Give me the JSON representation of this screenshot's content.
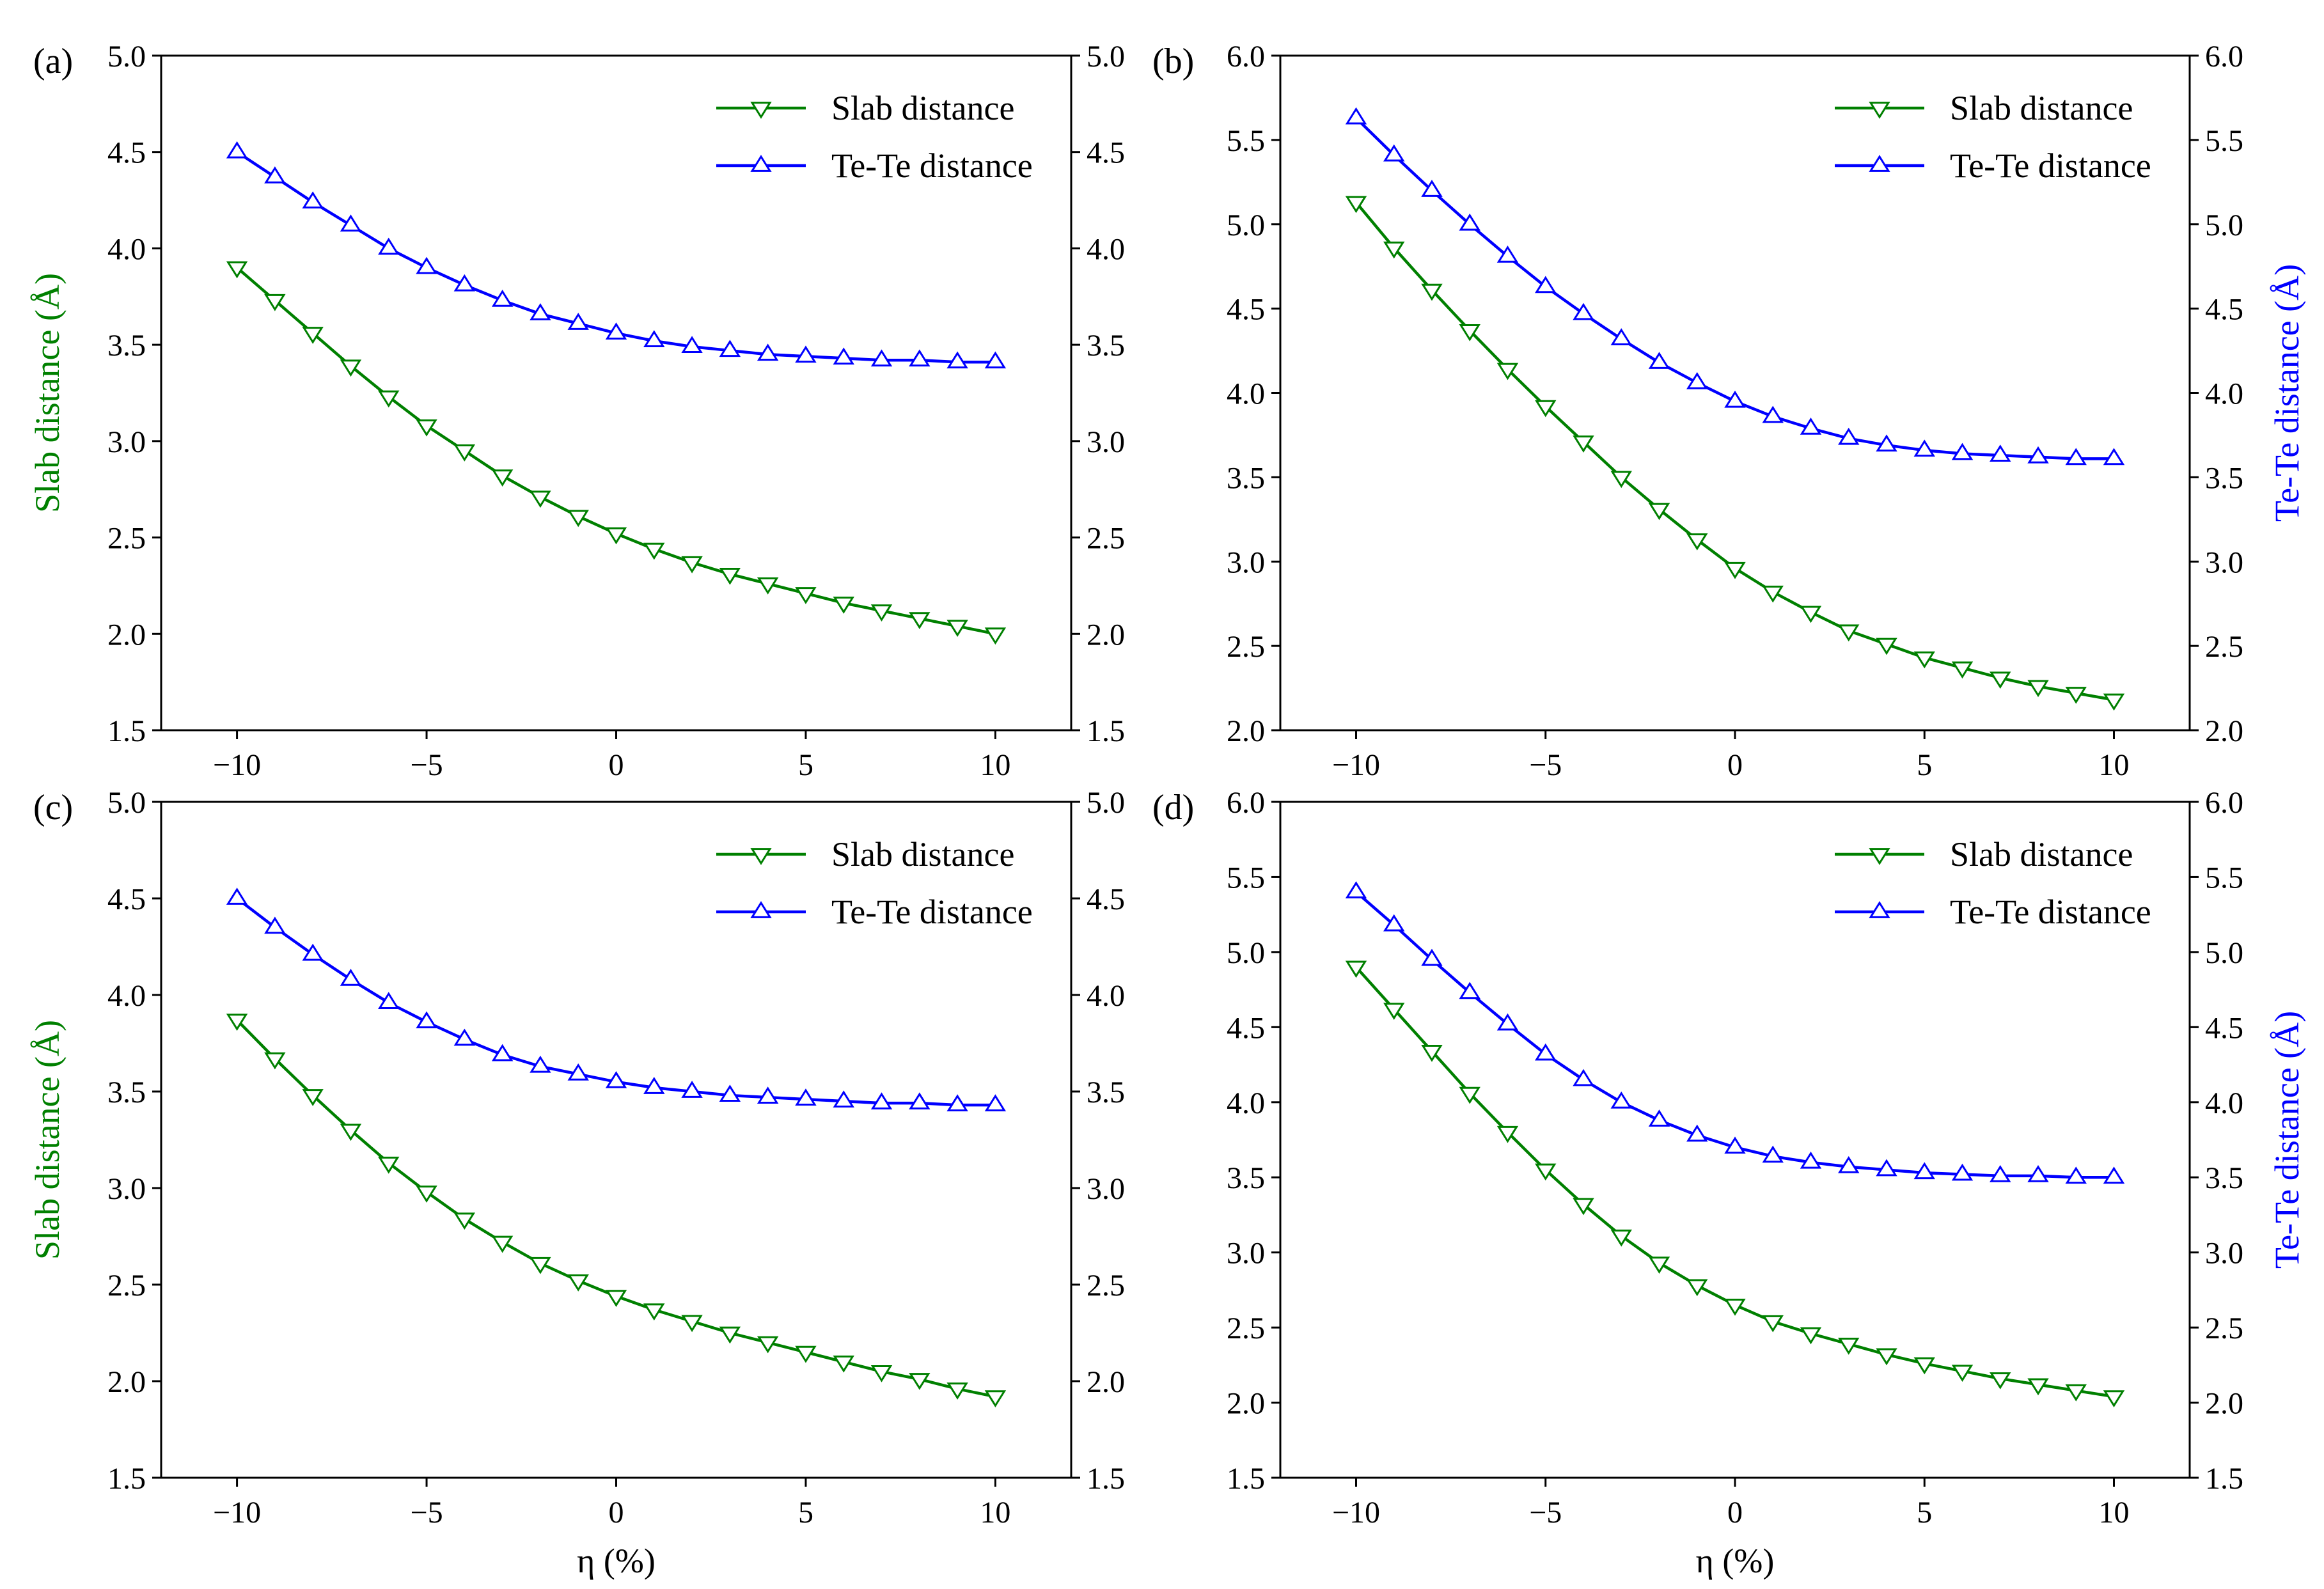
{
  "colors": {
    "slab": "#008000",
    "tete": "#0000ff",
    "axis": "#000000",
    "background": "#ffffff"
  },
  "chart_data": [
    {
      "type": "line",
      "panel_label": "(a)",
      "xlabel": "",
      "ylabel_left": "Slab distance (Å)",
      "ylabel_right": "",
      "xlim": [
        -12,
        12
      ],
      "xticks": [
        -10,
        -5,
        0,
        5,
        10
      ],
      "xtick_labels": [
        "−10",
        "−5",
        "0",
        "5",
        "10"
      ],
      "ylim": [
        1.5,
        5.0
      ],
      "yticks": [
        1.5,
        2.0,
        2.5,
        3.0,
        3.5,
        4.0,
        4.5,
        5.0
      ],
      "ytick_labels": [
        "1.5",
        "2.0",
        "2.5",
        "3.0",
        "3.5",
        "4.0",
        "4.5",
        "5.0"
      ],
      "legend_position": "upper-right",
      "x": [
        -10,
        -9,
        -8,
        -7,
        -6,
        -5,
        -4,
        -3,
        -2,
        -1,
        0,
        1,
        2,
        3,
        4,
        5,
        6,
        7,
        8,
        9,
        10
      ],
      "series": [
        {
          "name": "Slab distance",
          "marker": "triangle-down",
          "values": [
            3.9,
            3.73,
            3.56,
            3.39,
            3.23,
            3.08,
            2.95,
            2.82,
            2.71,
            2.61,
            2.52,
            2.44,
            2.37,
            2.31,
            2.26,
            2.21,
            2.16,
            2.12,
            2.08,
            2.04,
            2.0
          ]
        },
        {
          "name": "Te-Te distance",
          "marker": "triangle-up",
          "values": [
            4.5,
            4.37,
            4.24,
            4.12,
            4.0,
            3.9,
            3.81,
            3.73,
            3.66,
            3.61,
            3.56,
            3.52,
            3.49,
            3.47,
            3.45,
            3.44,
            3.43,
            3.42,
            3.42,
            3.41,
            3.41
          ]
        }
      ]
    },
    {
      "type": "line",
      "panel_label": "(b)",
      "xlabel": "",
      "ylabel_left": "",
      "ylabel_right": "Te-Te distance (Å)",
      "xlim": [
        -12,
        12
      ],
      "xticks": [
        -10,
        -5,
        0,
        5,
        10
      ],
      "xtick_labels": [
        "−10",
        "−5",
        "0",
        "5",
        "10"
      ],
      "ylim": [
        2.0,
        6.0
      ],
      "yticks": [
        2.0,
        2.5,
        3.0,
        3.5,
        4.0,
        4.5,
        5.0,
        5.5,
        6.0
      ],
      "ytick_labels": [
        "2.0",
        "2.5",
        "3.0",
        "3.5",
        "4.0",
        "4.5",
        "5.0",
        "5.5",
        "6.0"
      ],
      "legend_position": "upper-right",
      "x": [
        -10,
        -9,
        -8,
        -7,
        -6,
        -5,
        -4,
        -3,
        -2,
        -1,
        0,
        1,
        2,
        3,
        4,
        5,
        6,
        7,
        8,
        9,
        10
      ],
      "series": [
        {
          "name": "Slab distance",
          "marker": "triangle-down",
          "values": [
            5.13,
            4.86,
            4.61,
            4.37,
            4.14,
            3.92,
            3.71,
            3.5,
            3.31,
            3.13,
            2.96,
            2.82,
            2.7,
            2.59,
            2.51,
            2.43,
            2.37,
            2.31,
            2.26,
            2.22,
            2.18
          ]
        },
        {
          "name": "Te-Te distance",
          "marker": "triangle-up",
          "values": [
            5.63,
            5.41,
            5.2,
            5.0,
            4.81,
            4.63,
            4.47,
            4.32,
            4.18,
            4.06,
            3.95,
            3.86,
            3.79,
            3.73,
            3.69,
            3.66,
            3.64,
            3.63,
            3.62,
            3.61,
            3.61
          ]
        }
      ]
    },
    {
      "type": "line",
      "panel_label": "(c)",
      "xlabel": "η (%)",
      "ylabel_left": "Slab distance (Å)",
      "ylabel_right": "",
      "xlim": [
        -12,
        12
      ],
      "xticks": [
        -10,
        -5,
        0,
        5,
        10
      ],
      "xtick_labels": [
        "−10",
        "−5",
        "0",
        "5",
        "10"
      ],
      "ylim": [
        1.5,
        5.0
      ],
      "yticks": [
        1.5,
        2.0,
        2.5,
        3.0,
        3.5,
        4.0,
        4.5,
        5.0
      ],
      "ytick_labels": [
        "1.5",
        "2.0",
        "2.5",
        "3.0",
        "3.5",
        "4.0",
        "4.5",
        "5.0"
      ],
      "legend_position": "upper-right",
      "x": [
        -10,
        -9,
        -8,
        -7,
        -6,
        -5,
        -4,
        -3,
        -2,
        -1,
        0,
        1,
        2,
        3,
        4,
        5,
        6,
        7,
        8,
        9,
        10
      ],
      "series": [
        {
          "name": "Slab distance",
          "marker": "triangle-down",
          "values": [
            3.87,
            3.67,
            3.48,
            3.3,
            3.13,
            2.98,
            2.84,
            2.72,
            2.61,
            2.52,
            2.44,
            2.37,
            2.31,
            2.25,
            2.2,
            2.15,
            2.1,
            2.05,
            2.01,
            1.96,
            1.92
          ]
        },
        {
          "name": "Te-Te distance",
          "marker": "triangle-up",
          "values": [
            4.5,
            4.35,
            4.21,
            4.08,
            3.96,
            3.86,
            3.77,
            3.69,
            3.63,
            3.59,
            3.55,
            3.52,
            3.5,
            3.48,
            3.47,
            3.46,
            3.45,
            3.44,
            3.44,
            3.43,
            3.43
          ]
        }
      ]
    },
    {
      "type": "line",
      "panel_label": "(d)",
      "xlabel": "η (%)",
      "ylabel_left": "",
      "ylabel_right": "Te-Te distance (Å)",
      "xlim": [
        -12,
        12
      ],
      "xticks": [
        -10,
        -5,
        0,
        5,
        10
      ],
      "xtick_labels": [
        "−10",
        "−5",
        "0",
        "5",
        "10"
      ],
      "ylim": [
        1.5,
        6.0
      ],
      "yticks": [
        1.5,
        2.0,
        2.5,
        3.0,
        3.5,
        4.0,
        4.5,
        5.0,
        5.5,
        6.0
      ],
      "ytick_labels": [
        "1.5",
        "2.0",
        "2.5",
        "3.0",
        "3.5",
        "4.0",
        "4.5",
        "5.0",
        "5.5",
        "6.0"
      ],
      "legend_position": "upper-right",
      "x": [
        -10,
        -9,
        -8,
        -7,
        -6,
        -5,
        -4,
        -3,
        -2,
        -1,
        0,
        1,
        2,
        3,
        4,
        5,
        6,
        7,
        8,
        9,
        10
      ],
      "series": [
        {
          "name": "Slab distance",
          "marker": "triangle-down",
          "values": [
            4.9,
            4.62,
            4.34,
            4.06,
            3.8,
            3.55,
            3.32,
            3.11,
            2.93,
            2.78,
            2.65,
            2.54,
            2.46,
            2.39,
            2.32,
            2.26,
            2.21,
            2.16,
            2.12,
            2.08,
            2.04
          ]
        },
        {
          "name": "Te-Te distance",
          "marker": "triangle-up",
          "values": [
            5.4,
            5.18,
            4.95,
            4.73,
            4.52,
            4.32,
            4.15,
            4.0,
            3.88,
            3.78,
            3.7,
            3.64,
            3.6,
            3.57,
            3.55,
            3.53,
            3.52,
            3.51,
            3.51,
            3.5,
            3.5
          ]
        }
      ]
    }
  ]
}
